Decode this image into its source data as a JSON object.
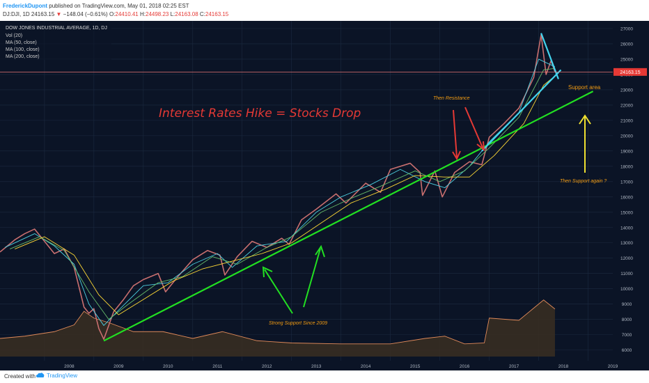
{
  "header": {
    "author": "FrederickDupont",
    "published": "published on TradingView.com, May 01, 2018 02:25 EST",
    "symbol": "DJ:DJI, 1D 24163.15",
    "change_arrow": "▼",
    "change": "−148.04 (−0.61%)",
    "ohlc": [
      {
        "label": "O:",
        "value": "24410.41"
      },
      {
        "label": "H:",
        "value": "24498.23"
      },
      {
        "label": "L:",
        "value": "24163.08"
      },
      {
        "label": "C:",
        "value": "24163.15"
      }
    ]
  },
  "legend": {
    "title": "DOW JONES INDUSTRIAL AVERAGE, 1D, DJ",
    "vol": "Vol (20)",
    "ma50": "MA (50, close)",
    "ma100": "MA (100, close)",
    "ma200": "MA (200, close)"
  },
  "footer": {
    "created": "Created with",
    "brand": "TradingView"
  },
  "colors": {
    "candle": "#c96f6f",
    "ma50": "#4dd0e1",
    "ma100": "#66bb6a",
    "ma200": "#fdd835",
    "trend": "#22e022",
    "cyan": "#43d4ee",
    "red_annot": "#e53935",
    "orange_annot": "#f39c12",
    "volume_line": "#e08a5a"
  },
  "chart_data": {
    "type": "line",
    "title": "DOW JONES INDUSTRIAL AVERAGE, 1D, DJ",
    "x_ticks": [
      "2008",
      "2009",
      "2010",
      "2011",
      "2012",
      "2013",
      "2014",
      "2015",
      "2016",
      "2017",
      "2018",
      "2019"
    ],
    "y_ticks": [
      6000,
      7000,
      8000,
      9000,
      10000,
      11000,
      12000,
      13000,
      14000,
      15000,
      16000,
      17000,
      18000,
      19000,
      20000,
      21000,
      22000,
      23000,
      24000,
      25000,
      26000,
      27000
    ],
    "ylim": [
      5300,
      27500
    ],
    "xlim": [
      2007.1,
      2019.5
    ],
    "last_price": "24163.15",
    "last_price_value": 24163.15,
    "series": [
      {
        "name": "DOW JONES INDUSTRIAL AVERAGE",
        "points": [
          [
            2007.1,
            12400
          ],
          [
            2007.4,
            13200
          ],
          [
            2007.6,
            13600
          ],
          [
            2007.8,
            13900
          ],
          [
            2008.0,
            13100
          ],
          [
            2008.2,
            12300
          ],
          [
            2008.4,
            12600
          ],
          [
            2008.6,
            11400
          ],
          [
            2008.8,
            8800
          ],
          [
            2008.9,
            8400
          ],
          [
            2009.0,
            8700
          ],
          [
            2009.1,
            7400
          ],
          [
            2009.2,
            6700
          ],
          [
            2009.4,
            8500
          ],
          [
            2009.6,
            9300
          ],
          [
            2009.8,
            10200
          ],
          [
            2010.0,
            10600
          ],
          [
            2010.3,
            11000
          ],
          [
            2010.45,
            9800
          ],
          [
            2010.7,
            10800
          ],
          [
            2011.0,
            11900
          ],
          [
            2011.3,
            12500
          ],
          [
            2011.55,
            12200
          ],
          [
            2011.65,
            10900
          ],
          [
            2011.9,
            12100
          ],
          [
            2012.2,
            13100
          ],
          [
            2012.5,
            12700
          ],
          [
            2012.8,
            13300
          ],
          [
            2012.95,
            12900
          ],
          [
            2013.2,
            14500
          ],
          [
            2013.5,
            15200
          ],
          [
            2013.9,
            16200
          ],
          [
            2014.1,
            15600
          ],
          [
            2014.5,
            16900
          ],
          [
            2014.8,
            16300
          ],
          [
            2015.0,
            17800
          ],
          [
            2015.4,
            18200
          ],
          [
            2015.6,
            17600
          ],
          [
            2015.65,
            16100
          ],
          [
            2015.9,
            17700
          ],
          [
            2016.05,
            16000
          ],
          [
            2016.3,
            17600
          ],
          [
            2016.6,
            18300
          ],
          [
            2016.85,
            18100
          ],
          [
            2017.0,
            19900
          ],
          [
            2017.3,
            20800
          ],
          [
            2017.6,
            21800
          ],
          [
            2017.9,
            23800
          ],
          [
            2018.05,
            26600
          ],
          [
            2018.15,
            24000
          ],
          [
            2018.25,
            24900
          ],
          [
            2018.33,
            24163
          ]
        ]
      },
      {
        "name": "MA (50, close)",
        "points": [
          [
            2007.2,
            12700
          ],
          [
            2007.8,
            13600
          ],
          [
            2008.2,
            12800
          ],
          [
            2008.6,
            11600
          ],
          [
            2008.9,
            9000
          ],
          [
            2009.2,
            7600
          ],
          [
            2009.5,
            8600
          ],
          [
            2010.0,
            10200
          ],
          [
            2010.5,
            10400
          ],
          [
            2011.0,
            11600
          ],
          [
            2011.5,
            12300
          ],
          [
            2011.8,
            11400
          ],
          [
            2012.3,
            12800
          ],
          [
            2012.9,
            13100
          ],
          [
            2013.5,
            15000
          ],
          [
            2014.0,
            16000
          ],
          [
            2014.6,
            16800
          ],
          [
            2015.2,
            17800
          ],
          [
            2015.7,
            17000
          ],
          [
            2016.1,
            16600
          ],
          [
            2016.6,
            18000
          ],
          [
            2017.0,
            19600
          ],
          [
            2017.6,
            21500
          ],
          [
            2018.0,
            25000
          ],
          [
            2018.33,
            24500
          ]
        ]
      },
      {
        "name": "MA (100, close)",
        "points": [
          [
            2007.3,
            12600
          ],
          [
            2007.9,
            13400
          ],
          [
            2008.4,
            12500
          ],
          [
            2008.9,
            9800
          ],
          [
            2009.3,
            8000
          ],
          [
            2009.7,
            9000
          ],
          [
            2010.3,
            10400
          ],
          [
            2010.8,
            10800
          ],
          [
            2011.4,
            12100
          ],
          [
            2011.9,
            11600
          ],
          [
            2012.5,
            12700
          ],
          [
            2013.0,
            13400
          ],
          [
            2013.6,
            15000
          ],
          [
            2014.2,
            15900
          ],
          [
            2014.8,
            16700
          ],
          [
            2015.5,
            17700
          ],
          [
            2016.0,
            17000
          ],
          [
            2016.5,
            17700
          ],
          [
            2017.0,
            19200
          ],
          [
            2017.6,
            21200
          ],
          [
            2018.1,
            24300
          ],
          [
            2018.33,
            24400
          ]
        ]
      },
      {
        "name": "MA (200, close)",
        "points": [
          [
            2007.4,
            12600
          ],
          [
            2008.0,
            13400
          ],
          [
            2008.6,
            12200
          ],
          [
            2009.1,
            9600
          ],
          [
            2009.5,
            8300
          ],
          [
            2010.0,
            9300
          ],
          [
            2010.6,
            10500
          ],
          [
            2011.2,
            11300
          ],
          [
            2011.8,
            11800
          ],
          [
            2012.4,
            12300
          ],
          [
            2013.0,
            13000
          ],
          [
            2013.6,
            14300
          ],
          [
            2014.2,
            15600
          ],
          [
            2014.9,
            16500
          ],
          [
            2015.5,
            17400
          ],
          [
            2016.1,
            17300
          ],
          [
            2016.6,
            17300
          ],
          [
            2017.1,
            18700
          ],
          [
            2017.7,
            20800
          ],
          [
            2018.1,
            23300
          ],
          [
            2018.33,
            23900
          ]
        ]
      }
    ],
    "volume": [
      [
        "2007.1",
        0.4
      ],
      [
        "2007.6",
        0.45
      ],
      [
        "2008.2",
        0.55
      ],
      [
        "2008.6",
        0.7
      ],
      [
        "2008.8",
        1.0
      ],
      [
        "2009.0",
        0.85
      ],
      [
        "2009.3",
        0.75
      ],
      [
        "2009.8",
        0.55
      ],
      [
        "2010.4",
        0.55
      ],
      [
        "2011.0",
        0.4
      ],
      [
        "2011.6",
        0.55
      ],
      [
        "2012.3",
        0.35
      ],
      [
        "2013.0",
        0.3
      ],
      [
        "2014.0",
        0.28
      ],
      [
        "2015.0",
        0.28
      ],
      [
        "2015.7",
        0.4
      ],
      [
        "2016.1",
        0.45
      ],
      [
        "2016.5",
        0.28
      ],
      [
        "2016.9",
        0.3
      ],
      [
        "2017.0",
        0.85
      ],
      [
        "2017.6",
        0.8
      ],
      [
        "2018.1",
        1.25
      ],
      [
        "2018.33",
        1.05
      ]
    ]
  },
  "annotations": {
    "headline": "Interest Rates Hike = Stocks Drop",
    "resistance": "Then Resistance",
    "support_area": "Support area",
    "support_again": "Then Support again ?",
    "strong_support": "Strong Support Since 2009"
  },
  "trendlines": [
    {
      "name": "support-2009-trendline",
      "from": [
        2009.2,
        6600
      ],
      "to": [
        2019.1,
        22900
      ],
      "color": "#22e022"
    },
    {
      "name": "steep-support-trendline",
      "from": [
        2016.85,
        19000
      ],
      "to": [
        2018.45,
        24300
      ],
      "color": "#43d4ee"
    },
    {
      "name": "falling-top-trendline",
      "from": [
        2018.05,
        26700
      ],
      "to": [
        2018.4,
        23700
      ],
      "color": "#43d4ee"
    }
  ]
}
